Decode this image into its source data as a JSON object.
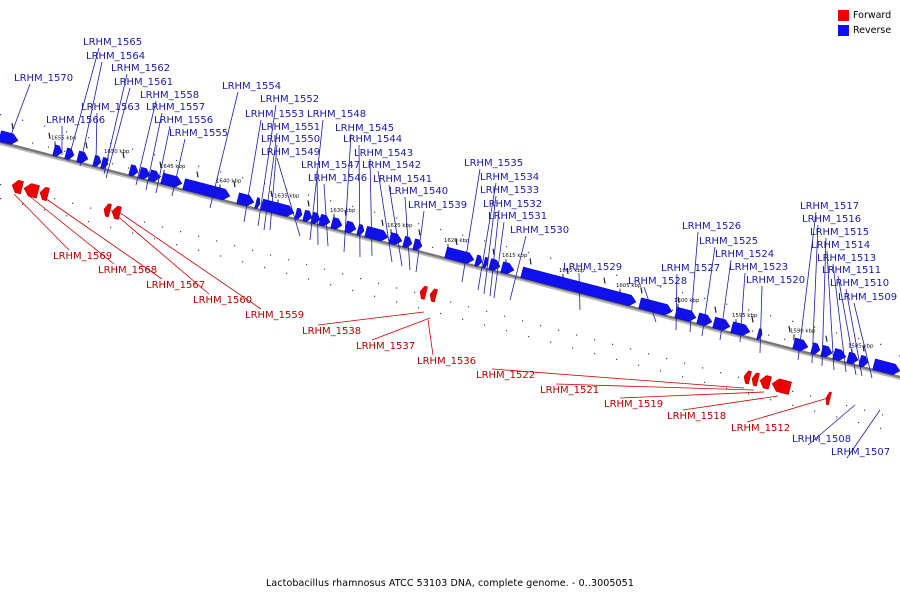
{
  "legend": {
    "forward": {
      "label": "Forward",
      "color": "#ee0000"
    },
    "reverse": {
      "label": "Reverse",
      "color": "#1010ee"
    }
  },
  "caption": "Lactobacillus rhamnosus ATCC 53103 DNA, complete genome. - 0..3005051",
  "colors": {
    "forward": "#ee0000",
    "reverse": "#1010ee",
    "backbone": "#777777",
    "forward_label": "#bb0000",
    "reverse_label": "#1a1aaa"
  },
  "ticks": [
    "1655 kbp",
    "1650 kbp",
    "1645 kbp",
    "1640 kbp",
    "1635 kbp",
    "1630 kbp",
    "1625 kbp",
    "1620 kbp",
    "1615 kbp",
    "1610 kbp",
    "1605 kbp",
    "1600 kbp",
    "1595 kbp",
    "1590 kbp",
    "1585 kbp"
  ],
  "reverse_genes": [
    "LRHM_1570",
    "LRHM_1566",
    "LRHM_1565",
    "LRHM_1564",
    "LRHM_1563",
    "LRHM_1562",
    "LRHM_1561",
    "LRHM_1558",
    "LRHM_1557",
    "LRHM_1556",
    "LRHM_1555",
    "LRHM_1554",
    "LRHM_1553",
    "LRHM_1552",
    "LRHM_1551",
    "LRHM_1550",
    "LRHM_1549",
    "LRHM_1548",
    "LRHM_1547",
    "LRHM_1546",
    "LRHM_1545",
    "LRHM_1544",
    "LRHM_1543",
    "LRHM_1542",
    "LRHM_1541",
    "LRHM_1540",
    "LRHM_1539",
    "LRHM_1535",
    "LRHM_1534",
    "LRHM_1533",
    "LRHM_1532",
    "LRHM_1531",
    "LRHM_1530",
    "LRHM_1529",
    "LRHM_1528",
    "LRHM_1527",
    "LRHM_1526",
    "LRHM_1525",
    "LRHM_1524",
    "LRHM_1523",
    "LRHM_1520",
    "LRHM_1517",
    "LRHM_1516",
    "LRHM_1515",
    "LRHM_1514",
    "LRHM_1513",
    "LRHM_1511",
    "LRHM_1510",
    "LRHM_1509",
    "LRHM_1508",
    "LRHM_1507"
  ],
  "forward_genes": [
    "LRHM_1569",
    "LRHM_1568",
    "LRHM_1567",
    "LRHM_1560",
    "LRHM_1559",
    "LRHM_1538",
    "LRHM_1537",
    "LRHM_1536",
    "LRHM_1522",
    "LRHM_1521",
    "LRHM_1519",
    "LRHM_1518",
    "LRHM_1512"
  ]
}
